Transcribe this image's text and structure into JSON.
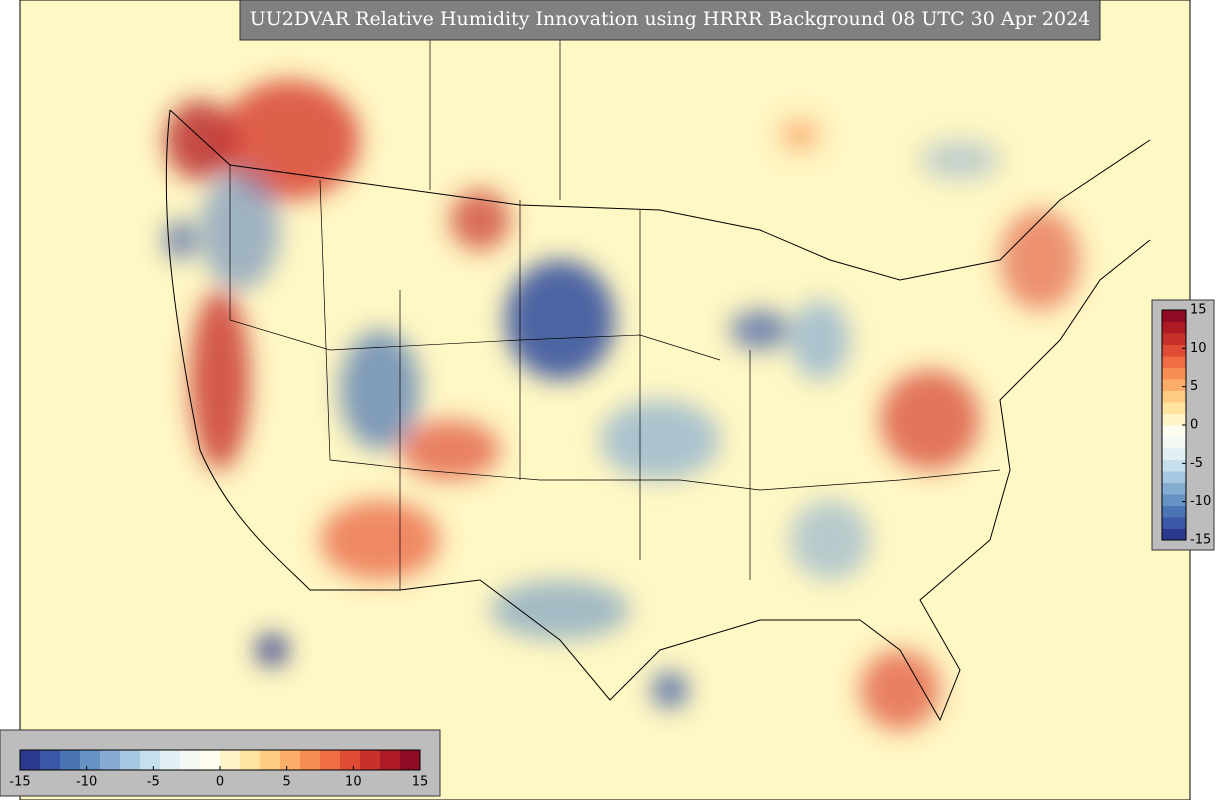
{
  "title": "UU2DVAR Relative Humidity Innovation using HRRR Background 08 UTC 30 Apr 2024",
  "colorbar": {
    "range": [
      -15,
      15
    ],
    "ticks": [
      -15,
      -10,
      -5,
      0,
      5,
      10,
      15
    ],
    "colors": [
      "#2b3a8f",
      "#3a58a6",
      "#4a74b4",
      "#6692c4",
      "#86acd2",
      "#a6c8e0",
      "#c6dfec",
      "#e2eff4",
      "#f4f9f4",
      "#fefdf0",
      "#fff5c8",
      "#fee4a0",
      "#fdcb82",
      "#fcad68",
      "#f88d52",
      "#ef6d43",
      "#e04b36",
      "#c8302a",
      "#ae1a24",
      "#8f0a22"
    ]
  }
}
